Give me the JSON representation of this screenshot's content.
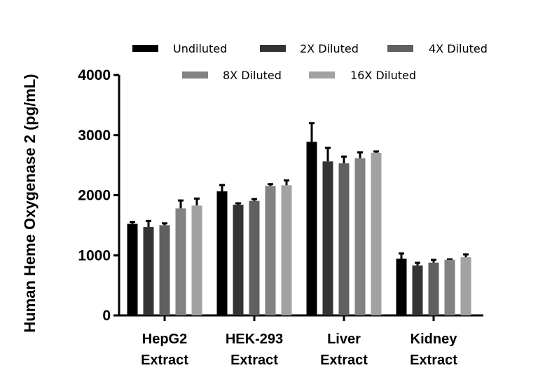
{
  "chart_data": {
    "type": "bar",
    "title": "",
    "xlabel": "",
    "ylabel": "Human Heme Oxygenase 2 (pg/mL)",
    "ylim": [
      0,
      4000
    ],
    "yticks": [
      "0",
      "1000",
      "2000",
      "3000",
      "4000"
    ],
    "ytick_values": [
      0,
      1000,
      2000,
      3000,
      4000
    ],
    "categories": [
      [
        "HepG2",
        "Extract"
      ],
      [
        "HEK-293",
        "Extract"
      ],
      [
        "Liver",
        "Extract"
      ],
      [
        "Kidney",
        "Extract"
      ]
    ],
    "legend_placement": "top",
    "grid": false,
    "series": [
      {
        "name": "Undiluted",
        "color": "#000000",
        "values": [
          1524,
          2064,
          2888,
          945
        ],
        "errors": [
          31,
          105,
          311,
          85
        ]
      },
      {
        "name": "2X Diluted",
        "color": "#333333",
        "values": [
          1469,
          1842,
          2562,
          832
        ],
        "errors": [
          102,
          24,
          225,
          43
        ]
      },
      {
        "name": "4X Diluted",
        "color": "#606060",
        "values": [
          1500,
          1905,
          2530,
          878
        ],
        "errors": [
          31,
          31,
          113,
          47
        ]
      },
      {
        "name": "8X Diluted",
        "color": "#828282",
        "values": [
          1780,
          2154,
          2616,
          925
        ],
        "errors": [
          132,
          30,
          97,
          8
        ]
      },
      {
        "name": "16X Diluted",
        "color": "#a2a2a2",
        "values": [
          1827,
          2165,
          2706,
          968
        ],
        "errors": [
          117,
          82,
          23,
          47
        ]
      }
    ]
  }
}
